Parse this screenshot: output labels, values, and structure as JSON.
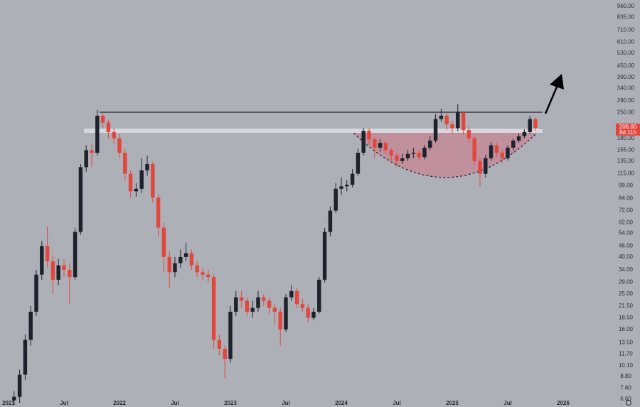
{
  "chart_data": {
    "type": "candlestick",
    "log_scale": true,
    "up_color": "#1e222d",
    "down_color": "#e2473e",
    "xlim": [
      2020.923,
      2026.404
    ],
    "ylim": [
      6.6,
      1040
    ],
    "xticks": [
      2021,
      {
        "value": 2021.5,
        "label": "Jul"
      },
      2022,
      {
        "value": 2022.5,
        "label": "Jul"
      },
      2023,
      {
        "value": 2023.5,
        "label": "Jul"
      },
      2024,
      {
        "value": 2024.5,
        "label": "Jul"
      },
      2025,
      {
        "value": 2025.5,
        "label": "Jul"
      },
      2026
    ],
    "yticks": [
      {
        "value": 960,
        "label": "960.00"
      },
      {
        "value": 835,
        "label": "835.00"
      },
      {
        "value": 710,
        "label": "710.00"
      },
      {
        "value": 610,
        "label": "610.00"
      },
      {
        "value": 530,
        "label": "530.00"
      },
      {
        "value": 450,
        "label": "450.00"
      },
      {
        "value": 390,
        "label": "390.00"
      },
      {
        "value": 340,
        "label": "340.00"
      },
      {
        "value": 290,
        "label": "290.00"
      },
      {
        "value": 250,
        "label": "250.00"
      },
      {
        "value": 180,
        "label": "180.00"
      },
      {
        "value": 155,
        "label": "155.00"
      },
      {
        "value": 135,
        "label": "135.00"
      },
      {
        "value": 115,
        "label": "115.00"
      },
      {
        "value": 99,
        "label": "99.00"
      },
      {
        "value": 84,
        "label": "84.00"
      },
      {
        "value": 72,
        "label": "72.00"
      },
      {
        "value": 62,
        "label": "62.00"
      },
      {
        "value": 54,
        "label": "54.00"
      },
      {
        "value": 46,
        "label": "46.00"
      },
      {
        "value": 40,
        "label": "40.00"
      },
      {
        "value": 34,
        "label": "34.00"
      },
      {
        "value": 29,
        "label": "29.00"
      },
      {
        "value": 25,
        "label": "25.00"
      },
      {
        "value": 21.5,
        "label": "21.50"
      },
      {
        "value": 18.5,
        "label": "18.50"
      },
      {
        "value": 16,
        "label": "16.00"
      },
      {
        "value": 13.5,
        "label": "13.50"
      },
      {
        "value": 11.7,
        "label": "11.70"
      },
      {
        "value": 10.1,
        "label": "10.10"
      },
      {
        "value": 8.8,
        "label": "8.80"
      },
      {
        "value": 7.6,
        "label": "7.60"
      },
      {
        "value": 6.6,
        "label": "6.60"
      }
    ],
    "last_price": {
      "value": 206,
      "label": "206.00"
    },
    "countdown": "8d 11h",
    "x": [
      2021.05,
      2021.1,
      2021.15,
      2021.2,
      2021.25,
      2021.3,
      2021.35,
      2021.4,
      2021.45,
      2021.5,
      2021.55,
      2021.6,
      2021.65,
      2021.7,
      2021.75,
      2021.8,
      2021.85,
      2021.9,
      2021.95,
      2022.0,
      2022.05,
      2022.1,
      2022.15,
      2022.2,
      2022.25,
      2022.3,
      2022.35,
      2022.4,
      2022.45,
      2022.5,
      2022.55,
      2022.6,
      2022.65,
      2022.7,
      2022.75,
      2022.8,
      2022.85,
      2022.9,
      2022.95,
      2023.0,
      2023.05,
      2023.1,
      2023.15,
      2023.2,
      2023.25,
      2023.3,
      2023.35,
      2023.4,
      2023.45,
      2023.5,
      2023.55,
      2023.6,
      2023.65,
      2023.7,
      2023.75,
      2023.8,
      2023.85,
      2023.9,
      2023.95,
      2024.0,
      2024.05,
      2024.1,
      2024.15,
      2024.2,
      2024.25,
      2024.3,
      2024.35,
      2024.4,
      2024.45,
      2024.5,
      2024.55,
      2024.6,
      2024.65,
      2024.7,
      2024.75,
      2024.8,
      2024.85,
      2024.9,
      2024.95,
      2025.0,
      2025.05,
      2025.1,
      2025.15,
      2025.2,
      2025.25,
      2025.3,
      2025.35,
      2025.4,
      2025.45,
      2025.5,
      2025.55,
      2025.6,
      2025.65,
      2025.7,
      2025.75
    ],
    "open": [
      6.5,
      6.8,
      9,
      14,
      20,
      32,
      46,
      38,
      30,
      36,
      34,
      31,
      55,
      125,
      155,
      150,
      240,
      220,
      195,
      180,
      150,
      115,
      92,
      95,
      120,
      130,
      85,
      58,
      40,
      33,
      37,
      40,
      42,
      36,
      33,
      32,
      31,
      14,
      12.5,
      11,
      20,
      24,
      23,
      20,
      21,
      24,
      23,
      21,
      20,
      16,
      24,
      26,
      22,
      21,
      18.5,
      20,
      30,
      55,
      72,
      95,
      98,
      100,
      115,
      150,
      198,
      178,
      160,
      170,
      155,
      145,
      135,
      140,
      148,
      150,
      142,
      160,
      175,
      230,
      240,
      215,
      205,
      250,
      200,
      180,
      135,
      115,
      140,
      165,
      150,
      140,
      160,
      175,
      185,
      195,
      230
    ],
    "high": [
      7.3,
      9.6,
      15,
      21.5,
      34,
      49,
      59,
      41,
      39,
      39,
      37,
      58,
      130,
      165,
      168,
      258,
      255,
      228,
      205,
      190,
      158,
      120,
      102,
      140,
      145,
      134,
      88,
      62,
      43,
      40,
      44,
      48,
      44,
      38,
      35,
      34,
      32,
      15,
      13,
      21.5,
      26,
      26,
      24,
      23,
      26,
      25,
      24,
      22,
      21,
      25,
      28,
      27,
      23.5,
      22,
      21,
      31,
      58,
      76,
      102,
      110,
      106,
      122,
      158,
      205,
      205,
      182,
      178,
      175,
      160,
      150,
      148,
      156,
      160,
      155,
      166,
      185,
      245,
      262,
      248,
      225,
      278,
      255,
      208,
      185,
      140,
      146,
      172,
      170,
      156,
      165,
      180,
      192,
      202,
      240,
      235
    ],
    "low": [
      6.2,
      6.3,
      8.4,
      13,
      19,
      30,
      35,
      25,
      28,
      31,
      22,
      30,
      53,
      118,
      125,
      145,
      205,
      180,
      168,
      140,
      105,
      85,
      86,
      90,
      112,
      80,
      52,
      33,
      27,
      31,
      35,
      38,
      34,
      31,
      30,
      29,
      12.5,
      11.5,
      8.6,
      10.5,
      19,
      21,
      19,
      18.5,
      20,
      21.5,
      19.5,
      17,
      13,
      15.5,
      23,
      21,
      20,
      17.5,
      18,
      19.5,
      29,
      52,
      70,
      88,
      92,
      97,
      112,
      145,
      165,
      140,
      152,
      148,
      136,
      125,
      130,
      135,
      140,
      136,
      138,
      155,
      170,
      222,
      200,
      190,
      198,
      188,
      170,
      128,
      98,
      110,
      136,
      142,
      132,
      136,
      155,
      170,
      180,
      190,
      198
    ],
    "close": [
      6.8,
      9,
      14,
      20,
      32,
      46,
      38,
      30,
      36,
      34,
      31,
      55,
      125,
      155,
      150,
      240,
      220,
      195,
      180,
      150,
      115,
      92,
      95,
      120,
      130,
      85,
      58,
      40,
      33,
      37,
      40,
      42,
      36,
      33,
      32,
      31,
      14,
      12.5,
      11,
      20,
      24,
      23,
      20,
      21,
      24,
      23,
      21,
      20,
      16,
      24,
      26,
      22,
      21,
      18.5,
      20,
      30,
      55,
      72,
      95,
      98,
      100,
      115,
      150,
      198,
      178,
      160,
      170,
      155,
      145,
      135,
      140,
      148,
      150,
      142,
      160,
      175,
      230,
      240,
      215,
      205,
      250,
      200,
      180,
      135,
      115,
      140,
      165,
      150,
      140,
      160,
      175,
      185,
      195,
      230,
      206
    ]
  }
}
